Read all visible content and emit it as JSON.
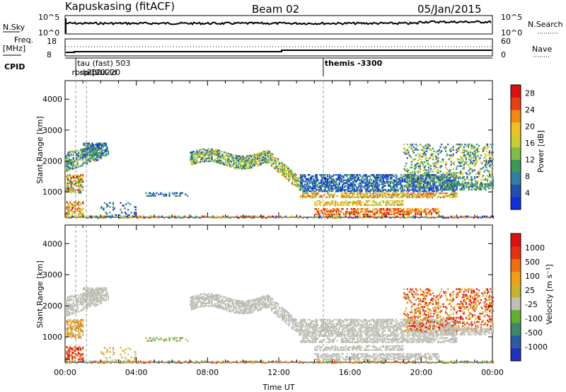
{
  "header": {
    "site": "Kapuskasing (fitACF)",
    "beam": "Beam 02",
    "date": "05/Jan/2015"
  },
  "strip": {
    "nsky_label": "N.Sky",
    "nsky_ticks": [
      "10^5",
      "10^0"
    ],
    "nsearch_label": "N.Search",
    "nsearch_ticks": [
      "10^5",
      "10^0"
    ],
    "freq_label": "Freq.",
    "freq_unit": "[MHz]",
    "freq_ticks": [
      "18",
      "8"
    ],
    "nave_label": "Nave",
    "nave_ticks": [
      "60",
      "0"
    ],
    "cpid_label": "CPID"
  },
  "cpid_events": [
    {
      "label": "tau (fast) 503",
      "t": 0.6
    },
    {
      "label": "rbsp",
      "t": 0.3
    },
    {
      "label": "rbsp-ul-ld",
      "t": 0.75
    },
    {
      "label": "200",
      "t": 1.15
    },
    {
      "label": "-120220",
      "t": 1.2
    },
    {
      "label": "themis -3300",
      "t": 14.5
    }
  ],
  "chart_data": [
    {
      "type": "heatmap",
      "name": "Power",
      "ylabel": "Slant Range [km]",
      "xlabel": "Time UT",
      "xlim": [
        0,
        24
      ],
      "ylim": [
        180,
        4600
      ],
      "xticks": [
        "00:00",
        "04:00",
        "08:00",
        "12:00",
        "16:00",
        "20:00",
        "00:00"
      ],
      "yticks": [
        1000,
        2000,
        3000,
        4000
      ],
      "colorbar": {
        "label": "Power [dB]",
        "ticks": [
          "4",
          "8",
          "12",
          "16",
          "20",
          "24",
          "28"
        ],
        "range": [
          0,
          30
        ],
        "colors": [
          "#1030e0",
          "#1f4fb0",
          "#2f7fa0",
          "#3a9a55",
          "#7dbe45",
          "#c8d030",
          "#f0c020",
          "#f08a10",
          "#e84010",
          "#e01010"
        ]
      }
    },
    {
      "type": "heatmap",
      "name": "Velocity",
      "ylabel": "Slant Range [km]",
      "xlabel": "Time UT",
      "xlim": [
        0,
        24
      ],
      "ylim": [
        180,
        4600
      ],
      "xticks": [
        "00:00",
        "04:00",
        "08:00",
        "12:00",
        "16:00",
        "20:00",
        "00:00"
      ],
      "yticks": [
        1000,
        2000,
        3000,
        4000
      ],
      "colorbar": {
        "label": "Velocity [m s⁻¹]",
        "ticks": [
          "1000",
          "500",
          "100",
          "25",
          "-25",
          "-100",
          "-500",
          "-1000"
        ],
        "colors": [
          "#2030c0",
          "#2a5aa8",
          "#3a8a6a",
          "#60b030",
          "#bfbfb6",
          "#c8b428",
          "#f0a010",
          "#f07010",
          "#e83010",
          "#e01010"
        ]
      }
    }
  ]
}
